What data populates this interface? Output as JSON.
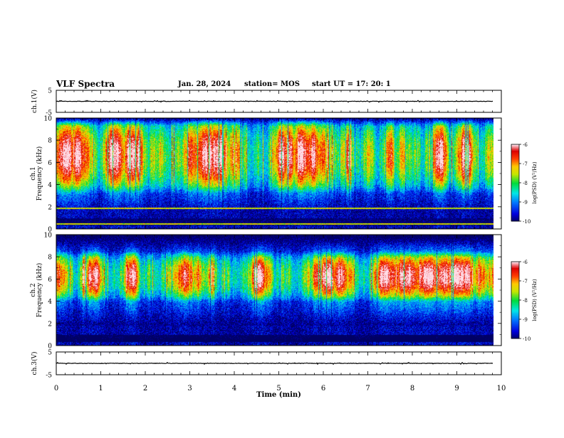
{
  "header": {
    "title": "VLF Spectra",
    "date": "Jan. 28, 2024",
    "station": "station= MOS",
    "start": "start  UT =   17: 20: 1"
  },
  "chart_data": [
    {
      "type": "line",
      "panel": "ch1-waveform",
      "ylabel": "ch.1(V)",
      "ylim": [
        -5,
        5
      ],
      "y_ticks": [
        "5",
        "-5"
      ],
      "series": [
        {
          "level": 0.0
        }
      ]
    },
    {
      "type": "heatmap",
      "panel": "ch1-spectrogram",
      "ylabel_line1": "ch.1",
      "ylabel_line2": "Frequency (kHz)",
      "ylim": [
        0,
        10
      ],
      "y_ticks": [
        "0",
        "2",
        "4",
        "6",
        "8",
        "10"
      ],
      "colorbar": {
        "label": "log(PSD) (V²/Hz)",
        "range": [
          -10,
          -6
        ],
        "ticks": [
          "-6",
          "-7",
          "-8",
          "-9",
          "-10"
        ]
      },
      "features": {
        "strong_band_khz": [
          4.0,
          9.3
        ],
        "dark_band_khz": [
          1.0,
          1.8
        ],
        "lines_khz": [
          1.9,
          0.5
        ]
      }
    },
    {
      "type": "heatmap",
      "panel": "ch2-spectrogram",
      "ylabel_line1": "ch.2",
      "ylabel_line2": "Frequency (kHz)",
      "ylim": [
        0,
        10
      ],
      "y_ticks": [
        "0",
        "2",
        "4",
        "6",
        "8",
        "10"
      ],
      "colorbar": {
        "label": "log(PSD) (V²/Hz)",
        "range": [
          -10,
          -6
        ],
        "ticks": [
          "-6",
          "-7",
          "-8",
          "-9",
          "-10"
        ]
      },
      "features": {
        "strong_band_khz": [
          4.5,
          8.0
        ],
        "dark_band_khz": [
          1.0,
          1.8
        ]
      }
    },
    {
      "type": "line",
      "panel": "ch3-waveform",
      "ylabel": "ch.3(V)",
      "ylim": [
        -5,
        5
      ],
      "y_ticks": [
        "5",
        "-5"
      ],
      "series": [
        {
          "level": 0.0
        }
      ]
    }
  ],
  "x_axis": {
    "label": "Time (min)",
    "range": [
      0,
      10
    ],
    "data_end": 9.82,
    "ticks": [
      "0",
      "1",
      "2",
      "3",
      "4",
      "5",
      "6",
      "7",
      "8",
      "9",
      "10"
    ]
  }
}
